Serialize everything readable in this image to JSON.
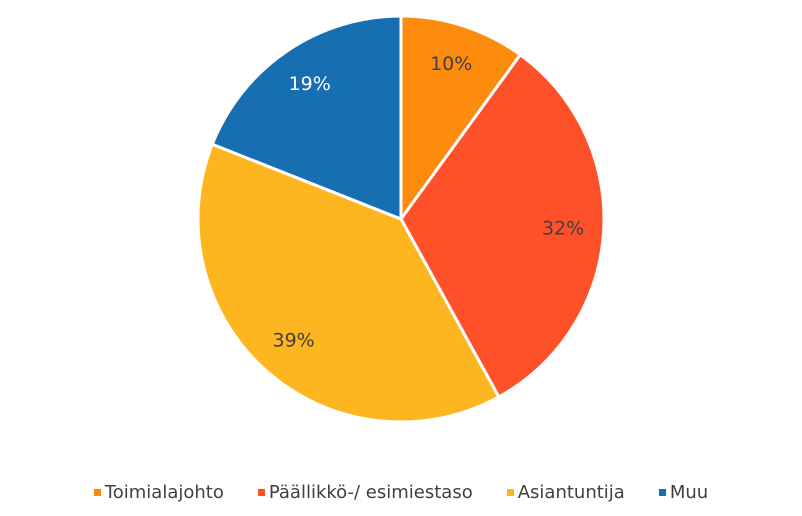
{
  "chart_data": {
    "type": "pie",
    "categories": [
      "Toimialajohto",
      "Päällikkö-/ esimiestaso",
      "Asiantuntija",
      "Muu"
    ],
    "values": [
      10,
      32,
      39,
      19
    ],
    "value_labels": [
      "10%",
      "32%",
      "39%",
      "19%"
    ],
    "colors": [
      "#fd8c0e",
      "#fe512a",
      "#fdb620",
      "#176fb2"
    ],
    "legend": "bottom"
  }
}
